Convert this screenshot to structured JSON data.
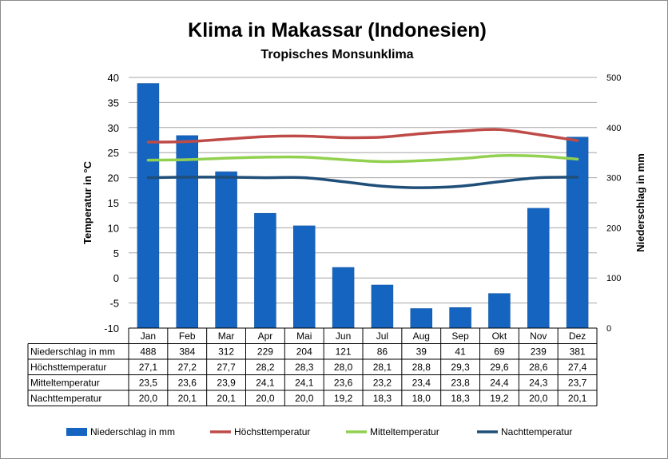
{
  "colors": {
    "precip": "#1565c0",
    "precip_edge": "#0d4f9c",
    "high": "#be4b48",
    "mean": "#92d050",
    "low": "#1f4e79",
    "grid": "#a6a6a6"
  },
  "chart_data": {
    "type": "bar+line",
    "title": "Klima in Makassar (Indonesien)",
    "subtitle": "Tropisches Monsunklima",
    "ylabel_left": "Temperatur in °C",
    "ylabel_right": "Niederschlag in mm",
    "ylim_left": [
      -10,
      40
    ],
    "yticks_left": [
      "40",
      "35",
      "30",
      "25",
      "20",
      "15",
      "10",
      "5",
      "0",
      "-5",
      "-10"
    ],
    "ylim_right": [
      0,
      500
    ],
    "yticks_right": [
      "500",
      "400",
      "300",
      "200",
      "100",
      "0"
    ],
    "grid": true,
    "legend_position": "bottom",
    "categories": [
      "Jan",
      "Feb",
      "Mar",
      "Apr",
      "Mai",
      "Jun",
      "Jul",
      "Aug",
      "Sep",
      "Okt",
      "Nov",
      "Dez"
    ],
    "series": [
      {
        "name": "Niederschlag in mm",
        "type": "bar",
        "axis": "right",
        "values": [
          488,
          384,
          312,
          229,
          204,
          121,
          86,
          39,
          41,
          69,
          239,
          381
        ],
        "labels": [
          "488",
          "384",
          "312",
          "229",
          "204",
          "121",
          "86",
          "39",
          "41",
          "69",
          "239",
          "381"
        ]
      },
      {
        "name": "Höchsttemperatur",
        "type": "line",
        "axis": "left",
        "values": [
          27.1,
          27.2,
          27.7,
          28.2,
          28.3,
          28.0,
          28.1,
          28.8,
          29.3,
          29.6,
          28.6,
          27.4
        ],
        "labels": [
          "27,1",
          "27,2",
          "27,7",
          "28,2",
          "28,3",
          "28,0",
          "28,1",
          "28,8",
          "29,3",
          "29,6",
          "28,6",
          "27,4"
        ]
      },
      {
        "name": "Mitteltemperatur",
        "type": "line",
        "axis": "left",
        "values": [
          23.5,
          23.6,
          23.9,
          24.1,
          24.1,
          23.6,
          23.2,
          23.4,
          23.8,
          24.4,
          24.3,
          23.7
        ],
        "labels": [
          "23,5",
          "23,6",
          "23,9",
          "24,1",
          "24,1",
          "23,6",
          "23,2",
          "23,4",
          "23,8",
          "24,4",
          "24,3",
          "23,7"
        ]
      },
      {
        "name": "Nachttemperatur",
        "type": "line",
        "axis": "left",
        "values": [
          20.0,
          20.1,
          20.1,
          20.0,
          20.0,
          19.2,
          18.3,
          18.0,
          18.3,
          19.2,
          20.0,
          20.1
        ],
        "labels": [
          "20,0",
          "20,1",
          "20,1",
          "20,0",
          "20,0",
          "19,2",
          "18,3",
          "18,0",
          "18,3",
          "19,2",
          "20,0",
          "20,1"
        ]
      }
    ]
  }
}
